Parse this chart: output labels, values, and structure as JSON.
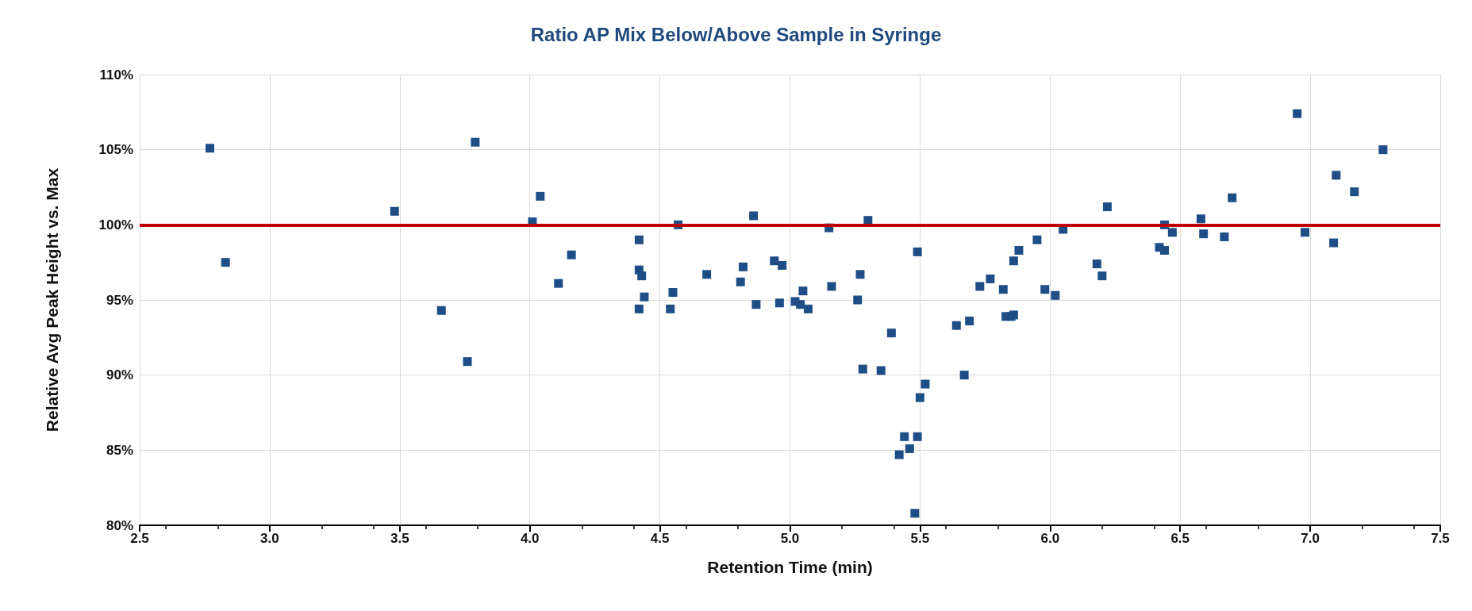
{
  "chart_data": {
    "type": "scatter",
    "title": "Ratio AP Mix Below/Above Sample in Syringe",
    "xlabel": "Retention Time (min)",
    "ylabel": "Relative Avg Peak Height vs. Max",
    "x": [
      2.77,
      2.83,
      3.48,
      3.66,
      3.76,
      3.79,
      4.01,
      4.04,
      4.11,
      4.16,
      4.42,
      4.42,
      4.42,
      4.43,
      4.44,
      4.54,
      4.55,
      4.57,
      4.68,
      4.81,
      4.82,
      4.86,
      4.87,
      4.94,
      4.96,
      4.97,
      5.02,
      5.04,
      5.05,
      5.07,
      5.15,
      5.16,
      5.26,
      5.27,
      5.28,
      5.3,
      5.35,
      5.39,
      5.42,
      5.44,
      5.46,
      5.48,
      5.49,
      5.49,
      5.5,
      5.52,
      5.64,
      5.67,
      5.69,
      5.73,
      5.77,
      5.82,
      5.83,
      5.85,
      5.86,
      5.86,
      5.88,
      5.95,
      5.98,
      6.02,
      6.05,
      6.18,
      6.2,
      6.22,
      6.42,
      6.44,
      6.44,
      6.47,
      6.58,
      6.59,
      6.67,
      6.7,
      6.95,
      6.98,
      7.09,
      7.1,
      7.17,
      7.28
    ],
    "series": [
      {
        "color": "#1f4e86",
        "values": [
          105.1,
          97.5,
          100.9,
          94.3,
          90.9,
          105.5,
          100.2,
          101.9,
          96.1,
          98.0,
          97.0,
          94.4,
          99.0,
          96.6,
          95.2,
          94.4,
          95.5,
          100.0,
          96.7,
          96.2,
          97.2,
          100.6,
          94.7,
          97.6,
          94.8,
          97.3,
          94.9,
          94.7,
          95.6,
          94.4,
          99.8,
          95.9,
          95.0,
          96.7,
          90.4,
          100.3,
          90.3,
          92.8,
          84.7,
          85.9,
          85.1,
          80.8,
          85.9,
          98.2,
          88.5,
          89.4,
          93.3,
          90.0,
          93.6,
          95.9,
          96.4,
          95.7,
          93.9,
          93.9,
          94.0,
          97.6,
          98.3,
          99.0,
          95.7,
          95.3,
          99.7,
          97.4,
          96.6,
          101.2,
          98.5,
          100.0,
          98.3,
          99.5,
          100.4,
          99.4,
          99.2,
          101.8,
          107.4,
          99.5,
          98.8,
          103.3,
          102.2,
          105.0
        ]
      }
    ],
    "xlim": [
      2.5,
      7.5
    ],
    "xticks": [
      2.5,
      {
        "value": 3,
        "label": "3.0"
      },
      3.5,
      {
        "value": 4,
        "label": "4.0"
      },
      4.5,
      {
        "value": 5,
        "label": "5.0"
      },
      5.5,
      {
        "value": 6,
        "label": "6.0"
      },
      6.5,
      {
        "value": 7,
        "label": "7.0"
      },
      7.5
    ],
    "ylim": [
      80,
      110
    ],
    "yticks": [
      {
        "value": 80,
        "label": "80%"
      },
      {
        "value": 85,
        "label": "85%"
      },
      {
        "value": 90,
        "label": "90%"
      },
      {
        "value": 95,
        "label": "95%"
      },
      {
        "value": 100,
        "label": "100%"
      },
      {
        "value": 105,
        "label": "105%"
      },
      {
        "value": 110,
        "label": "110%"
      }
    ],
    "ref_lines": [
      {
        "axis": "y",
        "value": 100,
        "color": "#c00000",
        "line_style": "solid"
      }
    ],
    "grid": true,
    "marker": "square"
  }
}
